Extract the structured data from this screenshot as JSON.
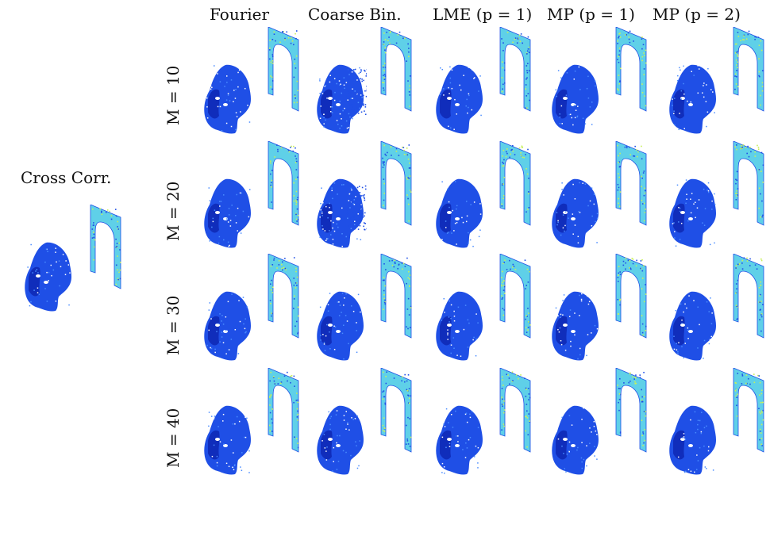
{
  "reference": {
    "label": "Cross Corr."
  },
  "columns": [
    {
      "label": "Fourier"
    },
    {
      "label": "Coarse Bin."
    },
    {
      "label": "LME (p = 1)"
    },
    {
      "label": "MP (p = 1)"
    },
    {
      "label": "MP (p = 2)"
    }
  ],
  "rows": [
    {
      "label": "M = 10"
    },
    {
      "label": "M = 20"
    },
    {
      "label": "M = 30"
    },
    {
      "label": "M = 40"
    }
  ],
  "colors": {
    "face_dark": "#0a1fa8",
    "face_mid": "#1f4fe6",
    "face_light": "#4a8cff",
    "frame_base": "#5fd0e8",
    "frame_speckle": "#c8f05a",
    "frame_edge": "#1f4fe6"
  }
}
